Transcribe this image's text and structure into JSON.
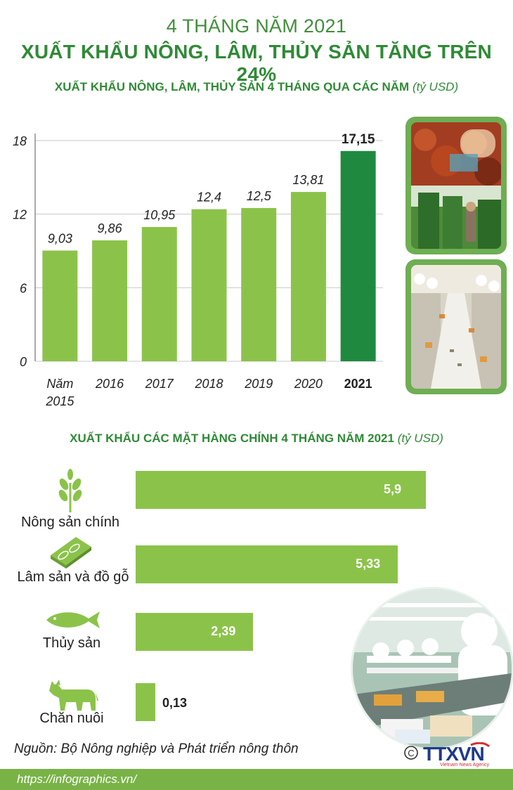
{
  "header": {
    "title_line1": "4 THÁNG NĂM 2021",
    "title_line2": "XUẤT KHẨU NÔNG, LÂM, THỦY SẢN TĂNG TRÊN 24%"
  },
  "chart_data": [
    {
      "type": "bar",
      "title": "XUẤT KHẨU NÔNG, LÂM, THỦY SẢN 4 THÁNG QUA CÁC NĂM",
      "unit": "(tỷ USD)",
      "categories": [
        "Năm 2015",
        "2016",
        "2017",
        "2018",
        "2019",
        "2020",
        "2021"
      ],
      "category_lines": [
        [
          "Năm",
          "2015"
        ],
        [
          "2016"
        ],
        [
          "2017"
        ],
        [
          "2018"
        ],
        [
          "2019"
        ],
        [
          "2020"
        ],
        [
          "2021"
        ]
      ],
      "values": [
        9.03,
        9.86,
        10.95,
        12.4,
        12.5,
        13.81,
        17.15
      ],
      "value_labels": [
        "9,03",
        "9,86",
        "10,95",
        "12,4",
        "12,5",
        "13,81",
        "17,15"
      ],
      "yticks": [
        0,
        6,
        12,
        18
      ],
      "ylim": [
        0,
        18
      ],
      "grid": true,
      "highlight_index": 6,
      "colors": {
        "bar": "#8bc34a",
        "highlight": "#1f8a3f",
        "grid": "#c9c9c9"
      }
    },
    {
      "type": "bar",
      "orientation": "horizontal",
      "title": "XUẤT KHẨU CÁC MẶT HÀNG CHÍNH 4 THÁNG NĂM 2021",
      "unit": "(tỷ USD)",
      "categories": [
        "Nông sản chính",
        "Lâm sản và đồ gỗ",
        "Thủy sản",
        "Chăn nuôi"
      ],
      "values": [
        5.9,
        5.33,
        2.39,
        0.13
      ],
      "value_labels": [
        "5,9",
        "5,33",
        "2,39",
        "0,13"
      ],
      "icons": [
        "wheat-icon",
        "wood-plank-icon",
        "fish-icon",
        "cow-icon"
      ],
      "colors": {
        "bar": "#8bc34a",
        "icon": "#8bc34a"
      }
    }
  ],
  "footer": {
    "source": "Nguồn: Bộ Nông nghiệp và Phát triển nông thôn",
    "url": "https://infographics.vn/",
    "logo_text": "TTXVN",
    "logo_tagline": "Vietnam News Agency",
    "copyright_symbol": "©"
  }
}
